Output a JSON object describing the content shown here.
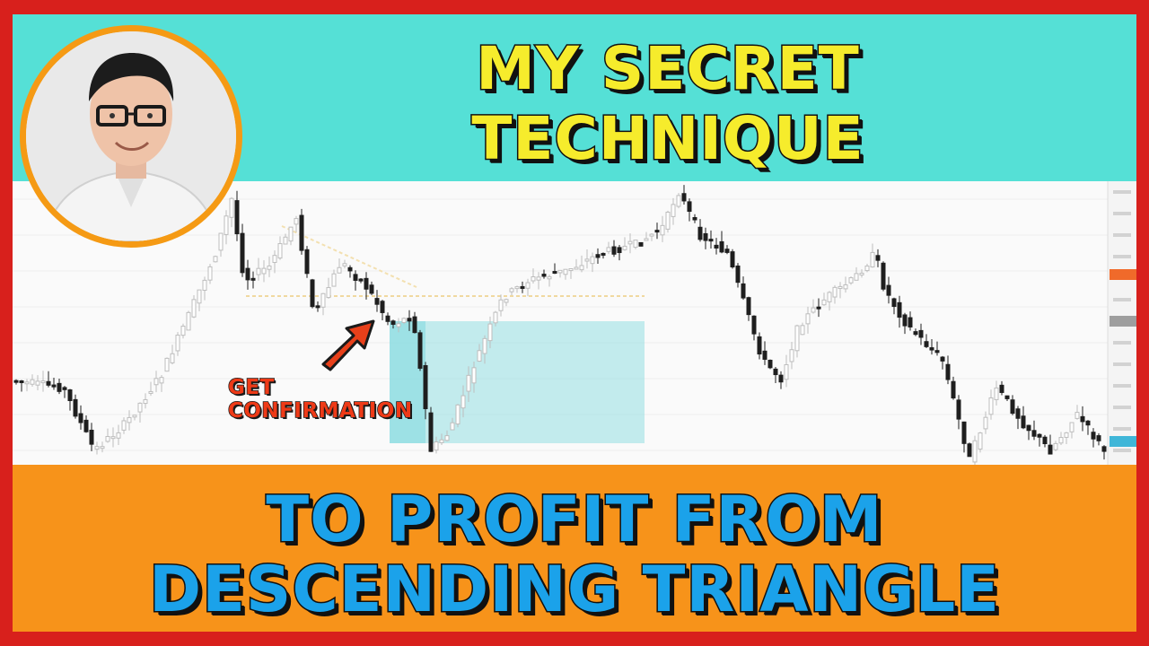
{
  "headline": {
    "top_lines": [
      "MY SECRET",
      "TECHNIQUE"
    ],
    "bottom_lines": [
      "TO PROFIT FROM",
      "DESCENDING TRIANGLE"
    ]
  },
  "callout": {
    "lines": [
      "GET",
      "CONFIRMATION"
    ]
  },
  "colors": {
    "border": "#d8201c",
    "top_band": "#55e0d6",
    "bottom_band": "#f7931a",
    "top_text": "#f6ec2c",
    "bottom_text": "#1ba2ea",
    "callout_text": "#ee3a17",
    "arrow": "#e8401a",
    "avatar_ring": "#f59a14",
    "highlight_box": "#7fd9de"
  },
  "icons": {
    "arrow": "arrow-up-right-icon",
    "avatar": "presenter-portrait"
  }
}
